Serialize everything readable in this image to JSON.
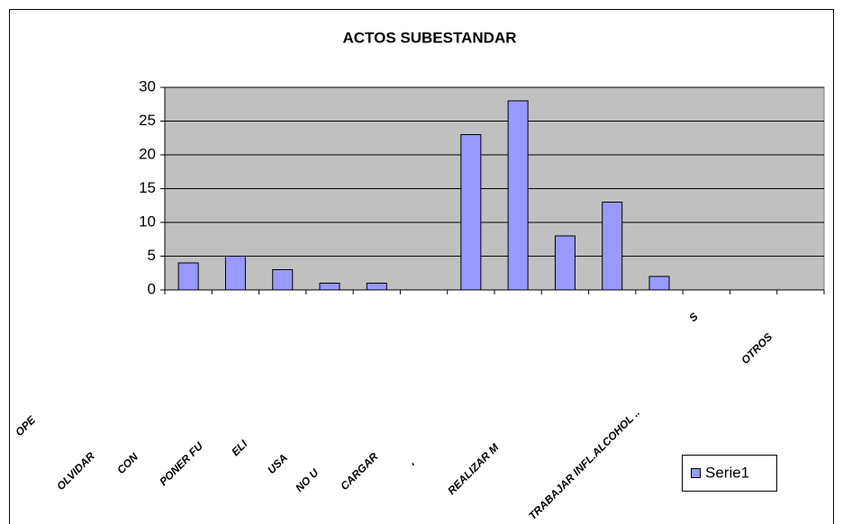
{
  "chart_data": {
    "type": "bar",
    "title": "ACTOS SUBESTANDAR",
    "categories": [
      "OPE",
      "OLVIDAR",
      "CON",
      "PONER FU",
      "ELI",
      "USA",
      "NO U",
      "CARGAR",
      "'",
      "REALIZAR M",
      null,
      "S",
      "TRABAJAR INFL.ALCOHOL ..",
      "OTROS"
    ],
    "series": [
      {
        "name": "Serie1",
        "color": "#9999ff",
        "values": [
          4,
          5,
          3,
          1,
          1,
          0,
          23,
          28,
          8,
          13,
          2,
          0,
          0,
          0
        ]
      }
    ],
    "ylim": [
      0,
      30
    ],
    "yticks": [
      0,
      5,
      10,
      15,
      20,
      25,
      30
    ],
    "grid": true,
    "legend": "right"
  }
}
